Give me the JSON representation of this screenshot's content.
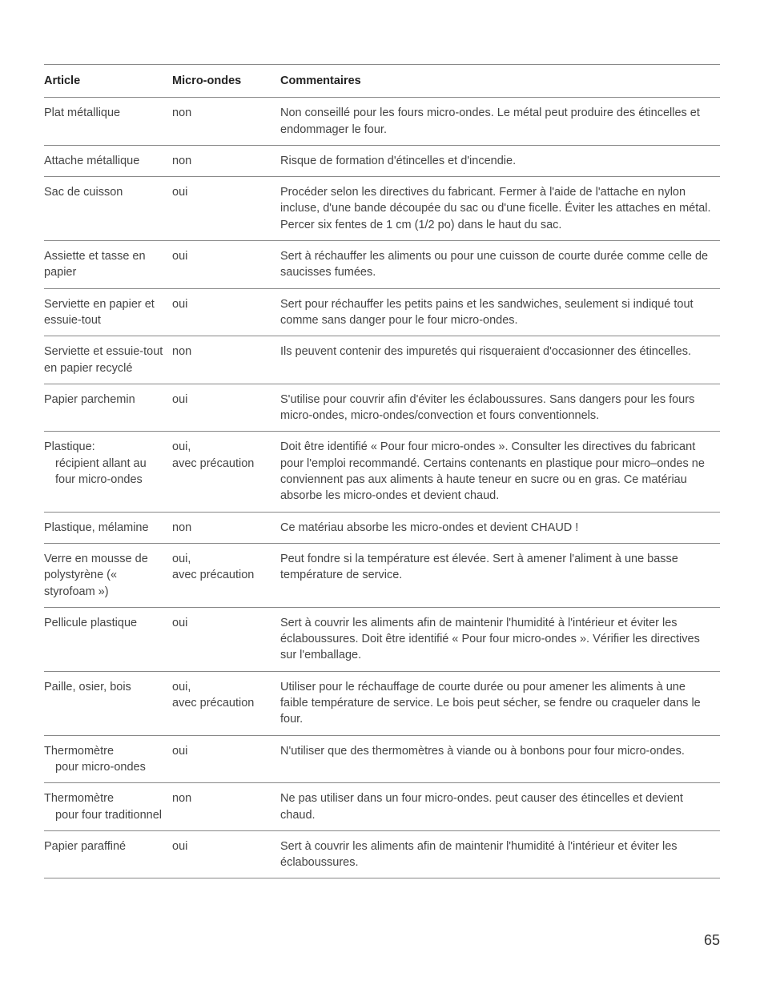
{
  "table": {
    "headers": {
      "article": "Article",
      "micro": "Micro-ondes",
      "comment": "Commentaires"
    },
    "rows": [
      {
        "article": "Plat métallique",
        "micro": "non",
        "comment": "Non conseillé pour les fours micro-ondes. Le métal peut produire des étincelles et endommager le four."
      },
      {
        "article": "Attache métallique",
        "micro": "non",
        "comment": "Risque de formation d'étincelles et d'incendie."
      },
      {
        "article": "Sac de cuisson",
        "micro": "oui",
        "comment": "Procéder selon les directives du fabricant. Fermer à l'aide de l'attache en nylon incluse, d'une bande découpée du sac ou d'une ficelle. Éviter les attaches en métal. Percer six fentes de 1 cm (1/2 po) dans le haut du sac."
      },
      {
        "article": "Assiette et tasse en papier",
        "micro": "oui",
        "comment": "Sert à réchauffer les aliments ou pour une cuisson de courte durée comme celle de saucisses fumées."
      },
      {
        "article": "Serviette en papier et essuie-tout",
        "micro": "oui",
        "comment": "Sert pour réchauffer les petits pains et les sandwiches, seulement si indiqué tout comme sans danger pour le four micro-ondes."
      },
      {
        "article": "Serviette et essuie-tout en papier recyclé",
        "micro": "non",
        "comment": "Ils peuvent contenir des impuretés qui risqueraient d'occasionner des étincelles."
      },
      {
        "article": "Papier parchemin",
        "micro": "oui",
        "comment": "S'utilise pour couvrir afin d'éviter les éclaboussures. Sans dangers pour les fours micro-ondes, micro-ondes/convection et fours conventionnels."
      },
      {
        "article_main": "Plastique:",
        "article_sub": "récipient allant au four micro-ondes",
        "micro": "oui,\navec précaution",
        "comment": "Doit être identifié « Pour four micro-ondes ». Consulter les directives du fabricant pour l'emploi recommandé. Certains contenants en plastique pour micro–ondes ne conviennent pas aux aliments à haute teneur en sucre ou en gras. Ce matériau absorbe les micro-ondes et devient chaud."
      },
      {
        "article": "Plastique, mélamine",
        "micro": "non",
        "comment": "Ce matériau absorbe les micro-ondes et devient CHAUD !"
      },
      {
        "article": "Verre en mousse de polystyrène (« styrofoam »)",
        "micro": "oui,\navec précaution",
        "comment": "Peut fondre si la température est élevée. Sert à amener l'aliment à une basse température de service."
      },
      {
        "article": "Pellicule plastique",
        "micro": "oui",
        "comment": "Sert à couvrir les aliments afin de maintenir l'humidité à l'intérieur et éviter les éclaboussures. Doit être identifié « Pour four micro-ondes ». Vérifier les directives sur l'emballage."
      },
      {
        "article": "Paille, osier, bois",
        "micro": "oui,\navec précaution",
        "comment": "Utiliser pour le réchauffage de courte durée ou pour amener les aliments à une faible température de service. Le bois peut sécher, se fendre ou craqueler dans le four."
      },
      {
        "article_main": "Thermomètre",
        "article_sub": "pour micro-ondes",
        "micro": "oui",
        "comment": "N'utiliser que des thermomètres à viande ou à bonbons pour four micro-ondes."
      },
      {
        "article_main": "Thermomètre",
        "article_sub": "pour four traditionnel",
        "micro": "non",
        "comment": "Ne pas utiliser dans un four micro-ondes. peut causer des étincelles et devient chaud."
      },
      {
        "article": "Papier paraffiné",
        "micro": "oui",
        "comment": "Sert à couvrir les aliments afin de maintenir l'humidité à l'intérieur et éviter les éclaboussures."
      }
    ]
  },
  "page_number": "65"
}
